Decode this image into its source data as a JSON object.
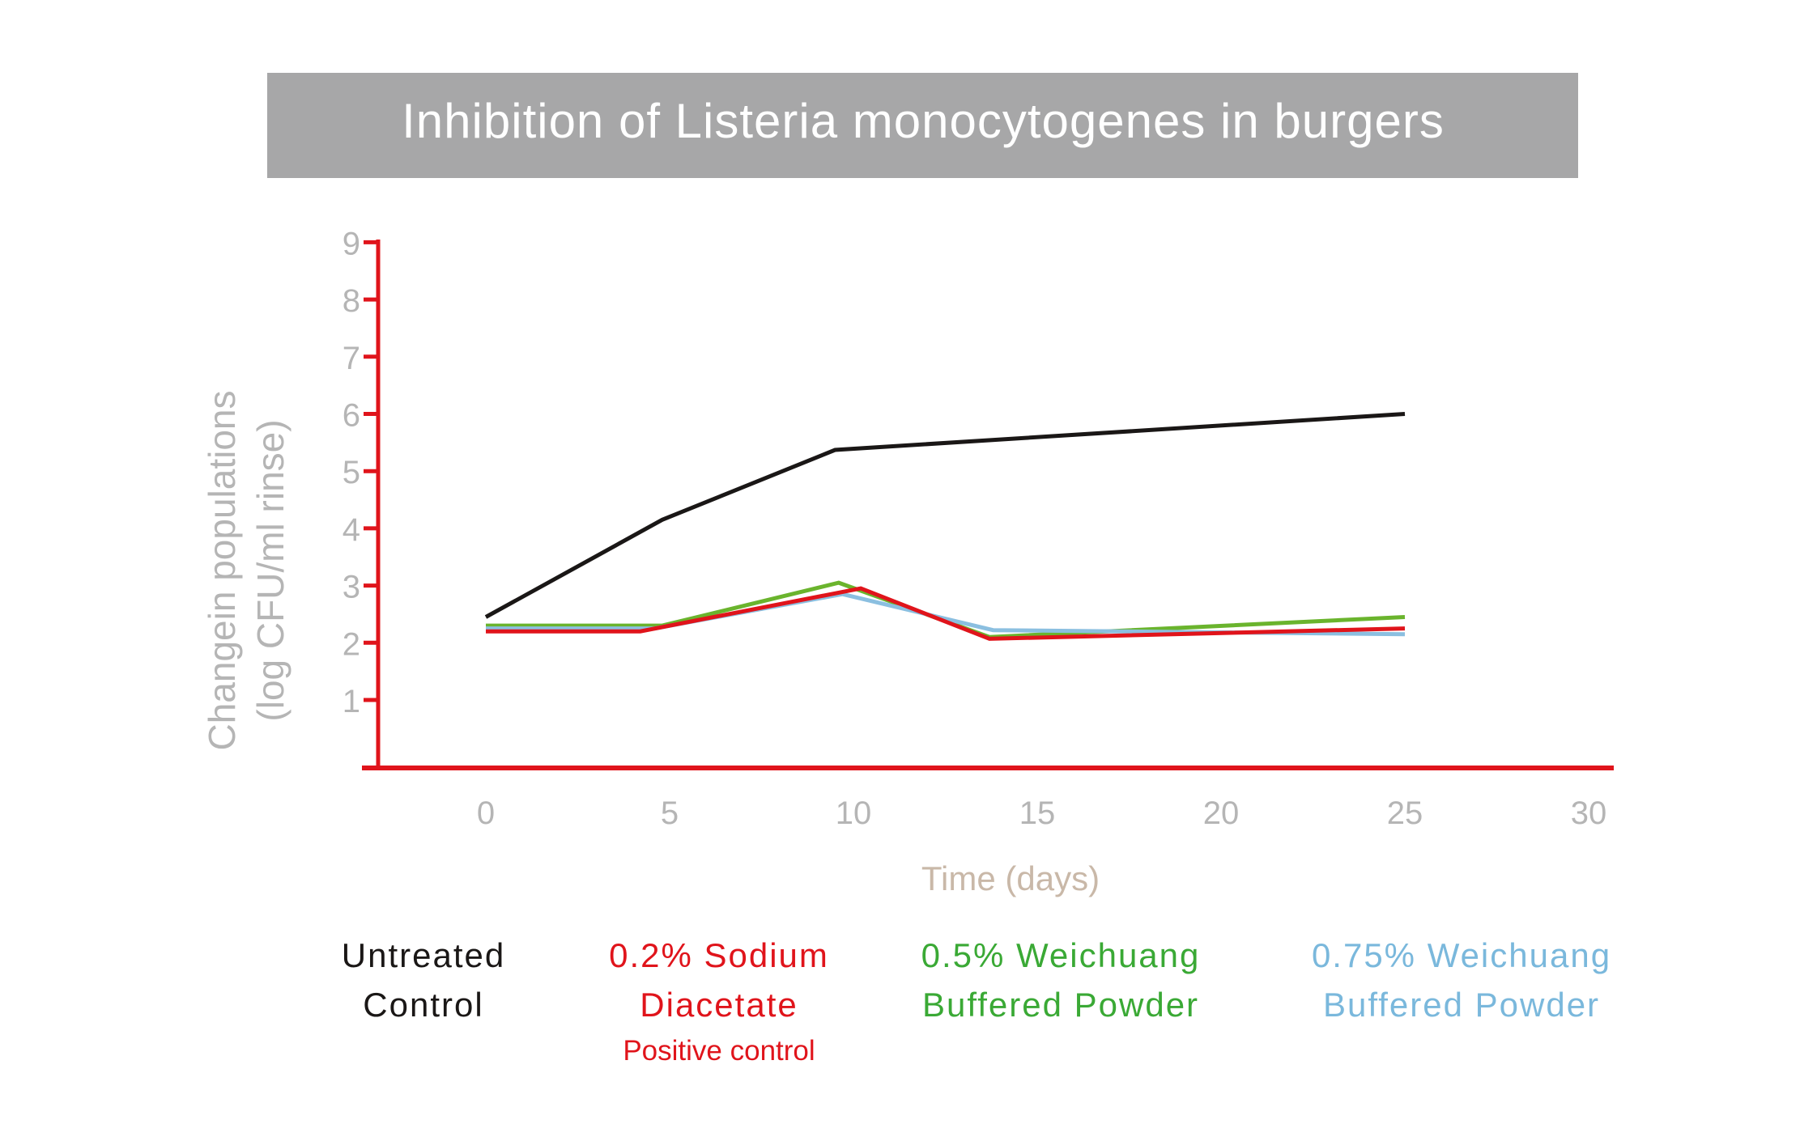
{
  "chart_data": {
    "type": "line",
    "title": "Inhibition of Listeria monocytogenes in burgers",
    "xlabel": "Time (days)",
    "ylabel_line1": "Changein populations",
    "ylabel_line2": "(log CFU/ml rinse)",
    "xlim": [
      -3,
      30
    ],
    "ylim": [
      0,
      9
    ],
    "x_ticks": [
      "0",
      "5",
      "10",
      "15",
      "20",
      "25",
      "30"
    ],
    "y_ticks": [
      "1",
      "2",
      "3",
      "4",
      "5",
      "6",
      "7",
      "8",
      "9"
    ],
    "axis_color": "#e0141b",
    "series": [
      {
        "name": "Untreated Control",
        "color": "#1a1716",
        "x": [
          0,
          4.8,
          9.5,
          25
        ],
        "y": [
          2.45,
          4.15,
          5.37,
          6.0
        ]
      },
      {
        "name": "0.5% Weichuang Buffered Powder",
        "color": "#6ab42d",
        "x": [
          0,
          4.8,
          9.6,
          13.7,
          25
        ],
        "y": [
          2.3,
          2.3,
          3.05,
          2.1,
          2.45
        ]
      },
      {
        "name": "0.75% Weichuang Buffered Powder",
        "color": "#8bbfe0",
        "x": [
          0,
          4.6,
          9.7,
          13.8,
          25
        ],
        "y": [
          2.25,
          2.25,
          2.85,
          2.22,
          2.15
        ]
      },
      {
        "name": "0.2% Sodium Diacetate",
        "color": "#e0141b",
        "x": [
          0,
          4.2,
          10.2,
          13.7,
          25
        ],
        "y": [
          2.2,
          2.2,
          2.95,
          2.07,
          2.25
        ]
      }
    ],
    "legend": [
      {
        "line1": "Untreated",
        "line2": "Control",
        "note": "",
        "color": "#1a1716"
      },
      {
        "line1": "0.2% Sodium",
        "line2": "Diacetate",
        "note": "Positive control",
        "color": "#e0141b"
      },
      {
        "line1": "0.5% Weichuang",
        "line2": "Buffered Powder",
        "note": "",
        "color": "#3aa935"
      },
      {
        "line1": "0.75% Weichuang",
        "line2": "Buffered Powder",
        "note": "",
        "color": "#7ab8dc"
      }
    ],
    "legend_placement": "bottom"
  }
}
